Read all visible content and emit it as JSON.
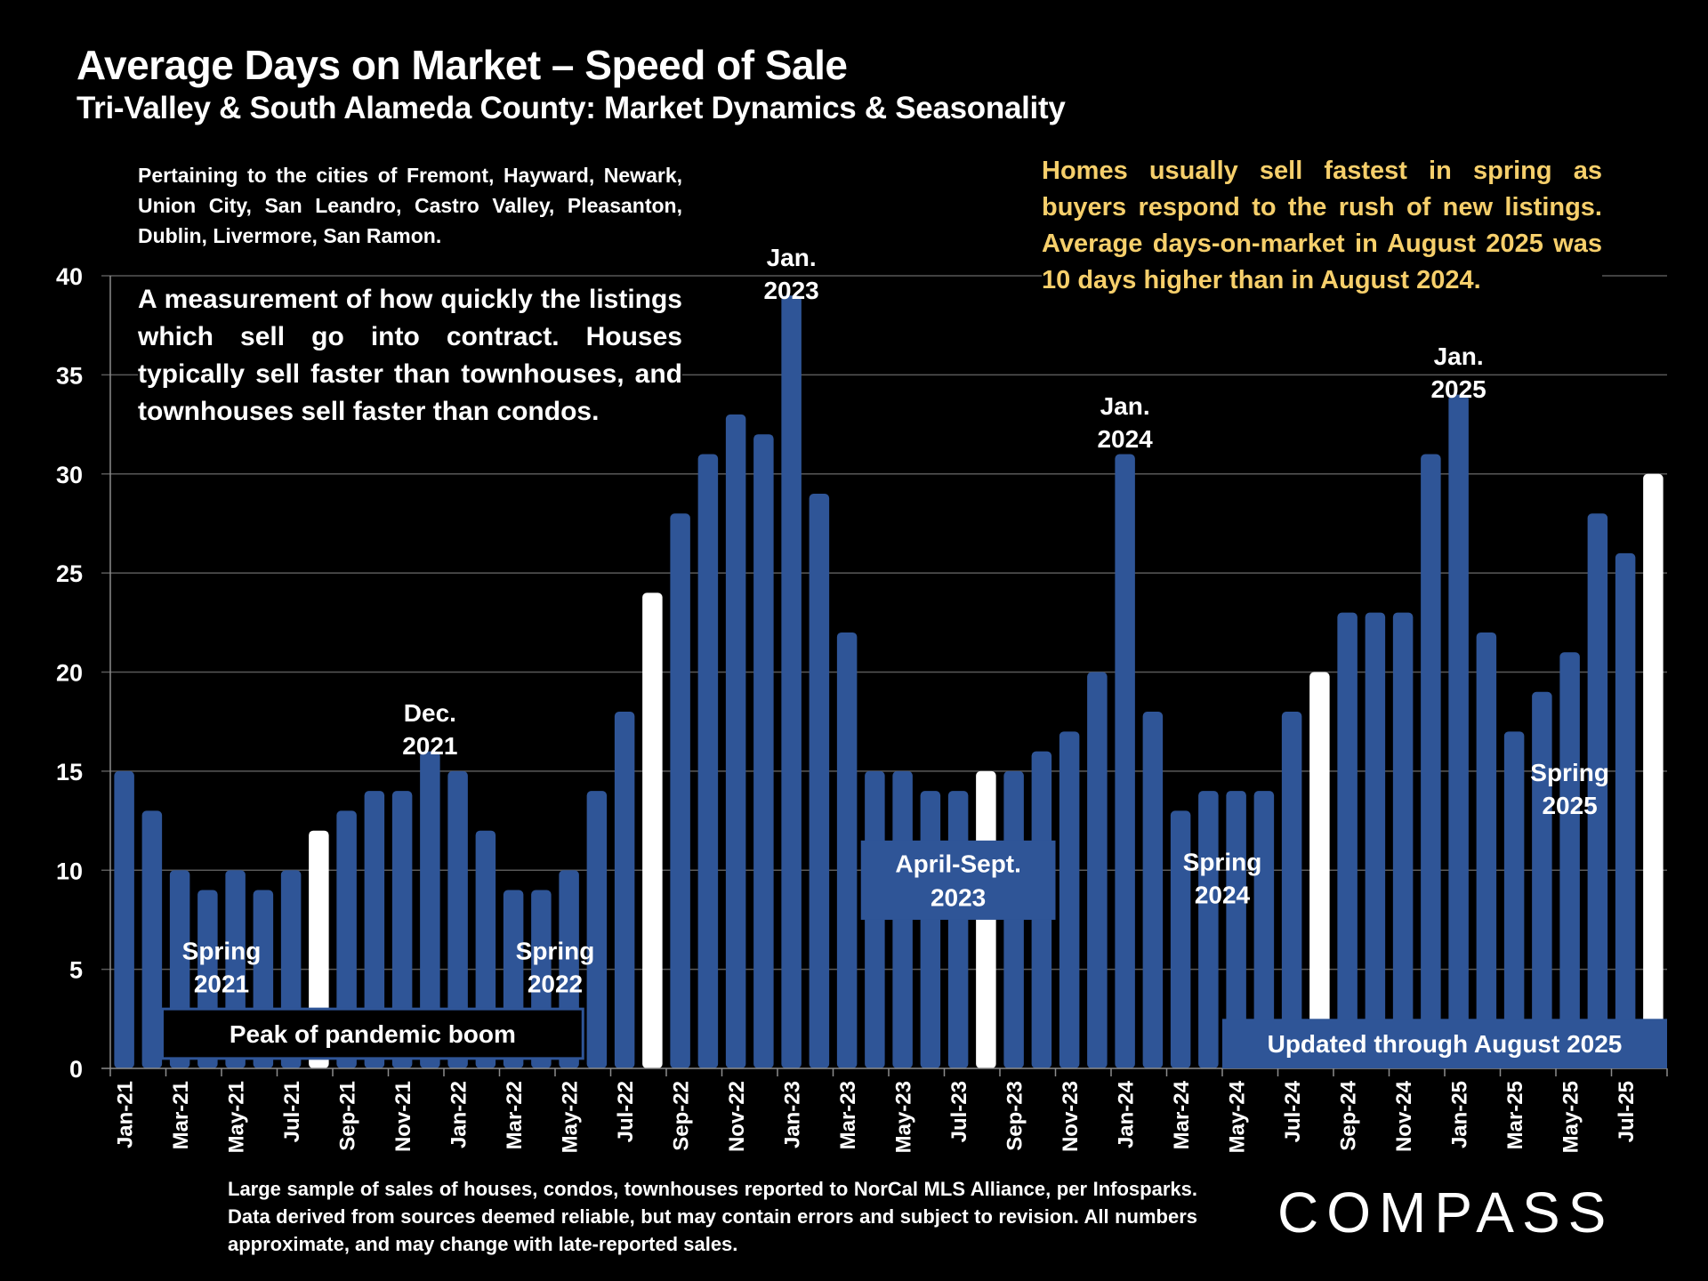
{
  "header": {
    "title": "Average Days on Market – Speed of Sale",
    "subtitle": "Tri-Valley & South Alameda County: Market Dynamics & Seasonality"
  },
  "text_blocks": {
    "cities": "Pertaining to the cities of Fremont, Hayward, Newark, Union City, San Leandro, Castro Valley, Pleasanton, Dublin, Livermore, San Ramon.",
    "measurement": "A measurement of how quickly the listings which sell go into contract. Houses typically sell faster than townhouses, and townhouses sell faster than condos.",
    "note": "Homes usually sell fastest in spring as buyers respond to the rush of new listings. Average days-on-market in August 2025 was 10 days higher than in August 2024.",
    "footer": "Large sample of sales of houses, condos, townhouses reported to NorCal MLS Alliance, per Infosparks. Data derived from sources deemed reliable, but may contain errors and subject to revision. All numbers approximate, and may change with late-reported sales.",
    "logo": "COMPASS"
  },
  "colors": {
    "bar": "#2f5597",
    "highlight_bar": "#ffffff",
    "note_text": "#f6cf6b",
    "grid": "#595959",
    "background": "#000000"
  },
  "chart_data": {
    "type": "bar",
    "title": "Average Days on Market – Speed of Sale",
    "xlabel": "",
    "ylabel": "",
    "ylim": [
      0,
      40
    ],
    "yticks": [
      0,
      5,
      10,
      15,
      20,
      25,
      30,
      35,
      40
    ],
    "grid": true,
    "legend": "none",
    "categories": [
      "Jan-21",
      "Feb-21",
      "Mar-21",
      "Apr-21",
      "May-21",
      "Jun-21",
      "Jul-21",
      "Aug-21",
      "Sep-21",
      "Oct-21",
      "Nov-21",
      "Dec-21",
      "Jan-22",
      "Feb-22",
      "Mar-22",
      "Apr-22",
      "May-22",
      "Jun-22",
      "Jul-22",
      "Aug-22",
      "Sep-22",
      "Oct-22",
      "Nov-22",
      "Dec-22",
      "Jan-23",
      "Feb-23",
      "Mar-23",
      "Apr-23",
      "May-23",
      "Jun-23",
      "Jul-23",
      "Aug-23",
      "Sep-23",
      "Oct-23",
      "Nov-23",
      "Dec-23",
      "Jan-24",
      "Feb-24",
      "Mar-24",
      "Apr-24",
      "May-24",
      "Jun-24",
      "Jul-24",
      "Aug-24",
      "Sep-24",
      "Oct-24",
      "Nov-24",
      "Dec-24",
      "Jan-25",
      "Feb-25",
      "Mar-25",
      "Apr-25",
      "May-25",
      "Jun-25",
      "Jul-25",
      "Aug-25"
    ],
    "tick_labels_shown": [
      "Jan-21",
      "Mar-21",
      "May-21",
      "Jul-21",
      "Sep-21",
      "Nov-21",
      "Jan-22",
      "Mar-22",
      "May-22",
      "Jul-22",
      "Sep-22",
      "Nov-22",
      "Jan-23",
      "Mar-23",
      "May-23",
      "Jul-23",
      "Sep-23",
      "Nov-23",
      "Jan-24",
      "Mar-24",
      "May-24",
      "Jul-24",
      "Sep-24",
      "Nov-24",
      "Jan-25",
      "Mar-25",
      "May-25",
      "Jul-25"
    ],
    "values": [
      15,
      13,
      10,
      9,
      10,
      9,
      10,
      12,
      13,
      14,
      14,
      16,
      15,
      12,
      9,
      9,
      10,
      14,
      18,
      24,
      28,
      31,
      33,
      32,
      39,
      29,
      22,
      15,
      15,
      14,
      14,
      15,
      15,
      16,
      17,
      20,
      31,
      18,
      13,
      14,
      14,
      14,
      18,
      20,
      23,
      23,
      23,
      31,
      34,
      22,
      17,
      19,
      21,
      28,
      26,
      30
    ],
    "highlighted": [
      "Aug-21",
      "Aug-22",
      "Aug-23",
      "Aug-24",
      "Aug-25"
    ],
    "annotations": [
      {
        "text": [
          "Spring",
          "2021"
        ],
        "anchor": "Apr-21",
        "y": 5.5
      },
      {
        "text": [
          "Dec.",
          "2021"
        ],
        "anchor": "Dec-21",
        "y": 17.5
      },
      {
        "text": [
          "Spring",
          "2022"
        ],
        "anchor": "Apr-22",
        "y": 5.5
      },
      {
        "text": [
          "Jan.",
          "2023"
        ],
        "anchor": "Jan-23",
        "y": 40.5
      },
      {
        "text": [
          "Jan.",
          "2024"
        ],
        "anchor": "Jan-24",
        "y": 33
      },
      {
        "text": [
          "Spring",
          "2024"
        ],
        "anchor": "Apr-24",
        "y": 10
      },
      {
        "text": [
          "Jan.",
          "2025"
        ],
        "anchor": "Jan-25",
        "y": 35.5
      },
      {
        "text": [
          "Spring",
          "2025"
        ],
        "anchor": "May-25",
        "y": 14.5
      }
    ],
    "boxed_annotations": [
      {
        "text": [
          "Peak of pandemic boom"
        ],
        "style": "dark",
        "from": "Mar-21",
        "to": "May-22",
        "y_range": [
          0.5,
          3
        ]
      },
      {
        "text": [
          "April-Sept.",
          "2023"
        ],
        "style": "blue",
        "from": "Apr-23",
        "to": "Oct-23",
        "y_range": [
          7.5,
          11.5
        ]
      },
      {
        "text": [
          "Updated through August 2025"
        ],
        "style": "blue",
        "from": "May-24",
        "to": "Aug-25",
        "y_range": [
          0,
          2.5
        ]
      }
    ]
  }
}
